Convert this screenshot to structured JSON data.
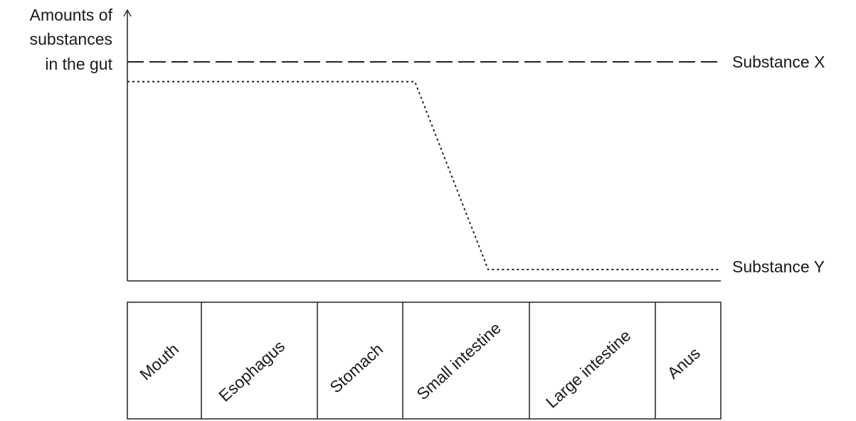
{
  "chart_data": {
    "type": "line",
    "ylabel_lines": [
      "Amounts of",
      "substances",
      "in the gut"
    ],
    "categories": [
      "Mouth",
      "Esophagus",
      "Stomach",
      "Small intestine",
      "Large intestine",
      "Anus"
    ],
    "y_ticks": false,
    "grid": false,
    "series": [
      {
        "name": "Substance X",
        "line_style": "dashed",
        "points": [
          {
            "position": "Mouth",
            "value": 100
          },
          {
            "position": "Anus",
            "value": 100
          }
        ]
      },
      {
        "name": "Substance Y",
        "line_style": "dotted",
        "points": [
          {
            "position": "Mouth",
            "value": 91
          },
          {
            "position": "Small intestine (start)",
            "value": 91
          },
          {
            "position": "Small intestine (end)",
            "value": 5
          },
          {
            "position": "Anus",
            "value": 5
          }
        ]
      }
    ]
  }
}
